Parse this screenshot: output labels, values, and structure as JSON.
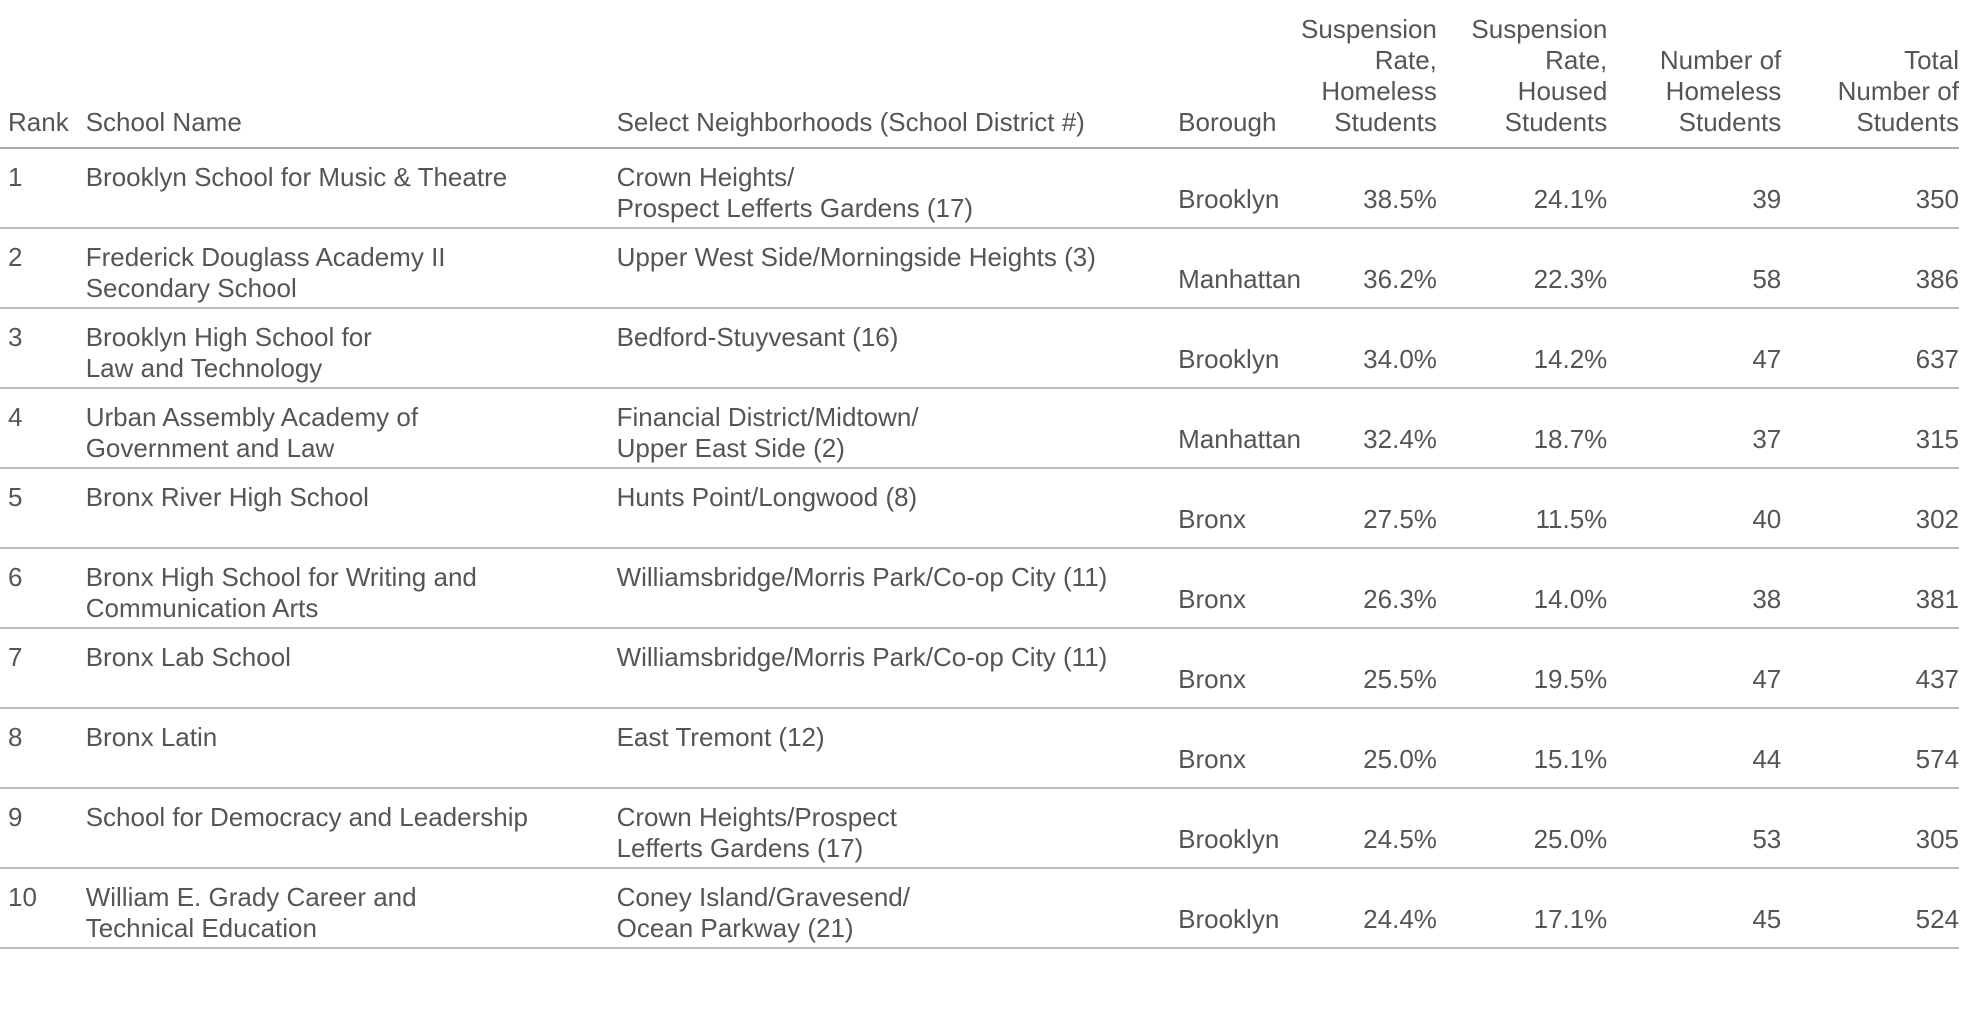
{
  "headers": {
    "rank": "Rank",
    "school_name": "School Name",
    "neighborhood": "Select Neighborhoods (School District #)",
    "borough": "Borough",
    "rate_homeless": "Suspension\nRate,\nHomeless\nStudents",
    "rate_housed": "Suspension\nRate,\nHoused\nStudents",
    "num_homeless": "Number of\nHomeless\nStudents",
    "total": "Total\nNumber of\nStudents"
  },
  "rows": [
    {
      "rank": "1",
      "name": "Brooklyn School for Music & Theatre",
      "neighborhood": "Crown Heights/\nProspect Lefferts Gardens (17)",
      "borough": "Brooklyn",
      "rate_homeless": "38.5%",
      "rate_housed": "24.1%",
      "num_homeless": "39",
      "total": "350"
    },
    {
      "rank": "2",
      "name": "Frederick Douglass Academy II\nSecondary School",
      "neighborhood": "Upper West Side/Morningside Heights (3)",
      "borough": "Manhattan",
      "rate_homeless": "36.2%",
      "rate_housed": "22.3%",
      "num_homeless": "58",
      "total": "386"
    },
    {
      "rank": "3",
      "name": "Brooklyn High School for\nLaw and Technology",
      "neighborhood": "Bedford-Stuyvesant (16)",
      "borough": "Brooklyn",
      "rate_homeless": "34.0%",
      "rate_housed": "14.2%",
      "num_homeless": "47",
      "total": "637"
    },
    {
      "rank": "4",
      "name": "Urban Assembly Academy of\nGovernment and Law",
      "neighborhood": "Financial District/Midtown/\nUpper East Side (2)",
      "borough": "Manhattan",
      "rate_homeless": "32.4%",
      "rate_housed": "18.7%",
      "num_homeless": "37",
      "total": "315"
    },
    {
      "rank": "5",
      "name": "Bronx River High School",
      "neighborhood": "Hunts Point/Longwood (8)",
      "borough": "Bronx",
      "rate_homeless": "27.5%",
      "rate_housed": "11.5%",
      "num_homeless": "40",
      "total": "302"
    },
    {
      "rank": "6",
      "name": "Bronx High School for Writing and\nCommunication Arts",
      "neighborhood": "Williamsbridge/Morris Park/Co-op City (11)",
      "borough": "Bronx",
      "rate_homeless": "26.3%",
      "rate_housed": "14.0%",
      "num_homeless": "38",
      "total": "381"
    },
    {
      "rank": "7",
      "name": "Bronx Lab School",
      "neighborhood": "Williamsbridge/Morris Park/Co-op City (11)",
      "borough": "Bronx",
      "rate_homeless": "25.5%",
      "rate_housed": "19.5%",
      "num_homeless": "47",
      "total": "437"
    },
    {
      "rank": "8",
      "name": "Bronx Latin",
      "neighborhood": "East Tremont (12)",
      "borough": "Bronx",
      "rate_homeless": "25.0%",
      "rate_housed": "15.1%",
      "num_homeless": "44",
      "total": "574"
    },
    {
      "rank": "9",
      "name": "School for Democracy and Leadership",
      "neighborhood": "Crown Heights/Prospect\nLefferts Gardens (17)",
      "borough": "Brooklyn",
      "rate_homeless": "24.5%",
      "rate_housed": "25.0%",
      "num_homeless": "53",
      "total": "305"
    },
    {
      "rank": "10",
      "name": "William E. Grady Career and\nTechnical Education",
      "neighborhood": "Coney Island/Gravesend/\nOcean Parkway (21)",
      "borough": "Brooklyn",
      "rate_homeless": "24.4%",
      "rate_housed": "17.1%",
      "num_homeless": "45",
      "total": "524"
    }
  ]
}
